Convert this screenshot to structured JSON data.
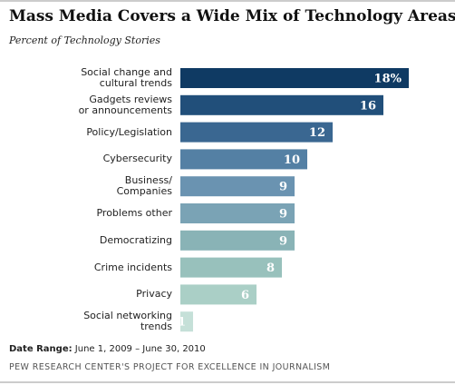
{
  "chart_data": {
    "type": "bar",
    "orientation": "horizontal",
    "title": "Mass Media Covers a Wide Mix of Technology Areas",
    "subtitle": "Percent of Technology Stories",
    "categories": [
      "Social change and\ncultural trends",
      "Gadgets reviews\nor announcements",
      "Policy/Legislation",
      "Cybersecurity",
      "Business/\nCompanies",
      "Problems other",
      "Democratizing",
      "Crime incidents",
      "Privacy",
      "Social networking\ntrends"
    ],
    "values": [
      18,
      16,
      12,
      10,
      9,
      9,
      9,
      8,
      6,
      1
    ],
    "value_labels": [
      "18%",
      "16",
      "12",
      "10",
      "9",
      "9",
      "9",
      "8",
      "6",
      "1"
    ],
    "colors": [
      "#0f3a63",
      "#214f7a",
      "#3a6791",
      "#5480a4",
      "#6a93b1",
      "#7aa3b5",
      "#89b3b6",
      "#98c1bc",
      "#aacfc6",
      "#c5e0d8"
    ],
    "xlim": [
      0,
      18
    ],
    "date_range_label": "Date Range:",
    "date_range": "June 1, 2009 – June 30, 2010",
    "source": "PEW RESEARCH CENTER'S PROJECT FOR EXCELLENCE IN JOURNALISM"
  }
}
